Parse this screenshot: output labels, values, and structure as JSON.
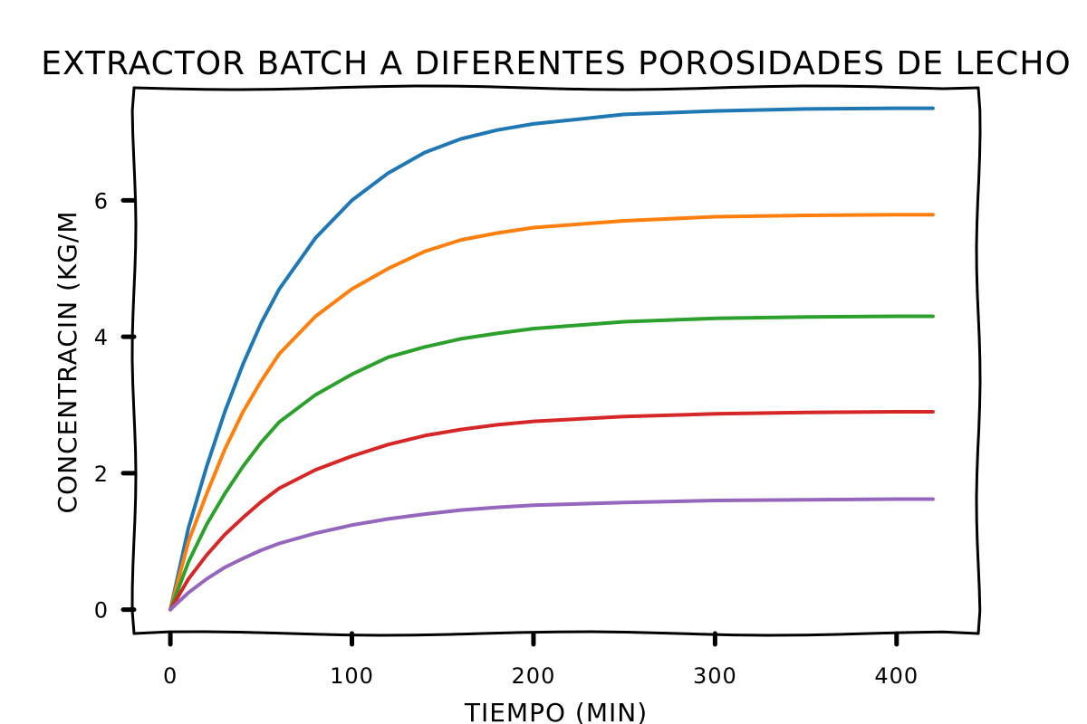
{
  "chart_data": {
    "type": "line",
    "title": "Extractor Batch a diferentes porosidades de lecho",
    "xlabel": "Tiempo (min)",
    "ylabel": "Concentracin (kg/m",
    "xlim": [
      -20,
      445
    ],
    "ylim": [
      -0.35,
      7.65
    ],
    "xticks": [
      0,
      100,
      200,
      300,
      400
    ],
    "yticks": [
      0,
      2,
      4,
      6
    ],
    "grid": false,
    "legend": "none",
    "series": [
      {
        "color": "#1f77b4",
        "x": [
          0,
          10,
          20,
          30,
          40,
          50,
          60,
          80,
          100,
          120,
          140,
          160,
          180,
          200,
          250,
          300,
          350,
          400,
          420
        ],
        "y": [
          0,
          1.2,
          2.1,
          2.9,
          3.6,
          4.2,
          4.7,
          5.45,
          6.0,
          6.4,
          6.7,
          6.9,
          7.03,
          7.12,
          7.26,
          7.31,
          7.34,
          7.35,
          7.35
        ]
      },
      {
        "color": "#ff7f0e",
        "x": [
          0,
          10,
          20,
          30,
          40,
          50,
          60,
          80,
          100,
          120,
          140,
          160,
          180,
          200,
          250,
          300,
          350,
          400,
          420
        ],
        "y": [
          0,
          1.0,
          1.7,
          2.35,
          2.9,
          3.35,
          3.75,
          4.3,
          4.7,
          5.0,
          5.25,
          5.42,
          5.52,
          5.6,
          5.7,
          5.76,
          5.78,
          5.79,
          5.79
        ]
      },
      {
        "color": "#2ca02c",
        "x": [
          0,
          10,
          20,
          30,
          40,
          50,
          60,
          80,
          100,
          120,
          140,
          160,
          180,
          200,
          250,
          300,
          350,
          400,
          420
        ],
        "y": [
          0,
          0.7,
          1.25,
          1.7,
          2.1,
          2.45,
          2.75,
          3.15,
          3.45,
          3.7,
          3.85,
          3.97,
          4.05,
          4.12,
          4.22,
          4.27,
          4.29,
          4.3,
          4.3
        ]
      },
      {
        "color": "#d62728",
        "x": [
          0,
          10,
          20,
          30,
          40,
          50,
          60,
          80,
          100,
          120,
          140,
          160,
          180,
          200,
          250,
          300,
          350,
          400,
          420
        ],
        "y": [
          0,
          0.45,
          0.8,
          1.1,
          1.35,
          1.58,
          1.78,
          2.05,
          2.25,
          2.42,
          2.55,
          2.64,
          2.71,
          2.76,
          2.83,
          2.87,
          2.89,
          2.9,
          2.9
        ]
      },
      {
        "color": "#9467bd",
        "x": [
          0,
          10,
          20,
          30,
          40,
          50,
          60,
          80,
          100,
          120,
          140,
          160,
          180,
          200,
          250,
          300,
          350,
          400,
          420
        ],
        "y": [
          0,
          0.25,
          0.45,
          0.62,
          0.75,
          0.87,
          0.97,
          1.12,
          1.24,
          1.33,
          1.4,
          1.46,
          1.5,
          1.53,
          1.57,
          1.6,
          1.61,
          1.62,
          1.62
        ]
      }
    ]
  }
}
